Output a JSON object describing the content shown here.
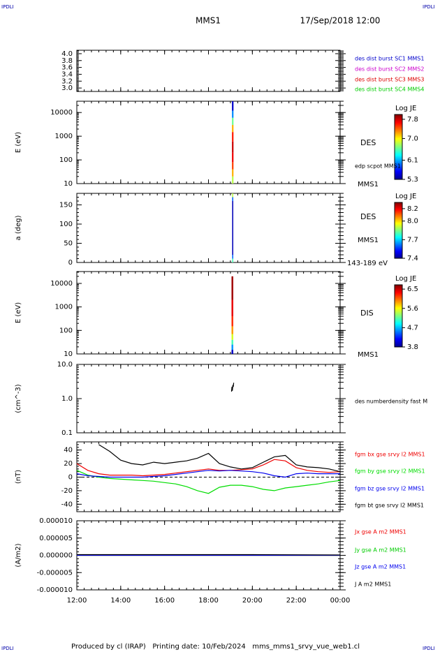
{
  "corner_label": "IPDLI",
  "header": {
    "title": "MMS1",
    "date": "17/Sep/2018 12:00"
  },
  "footer": "Produced by cl (IRAP)   Printing date: 10/Feb/2024   mms_mms1_srvy_vue_web1.cl",
  "chart_data": [
    {
      "type": "line",
      "ylim": [
        2.9,
        4.1
      ],
      "yticks": [
        {
          "value": 3.0,
          "label": "3.0"
        },
        3.2,
        3.4,
        3.6,
        3.8,
        {
          "value": 4.0,
          "label": "4.0"
        }
      ],
      "series": [
        {
          "name": "des dist burst SC1 MMS1",
          "color": "#0000cc"
        },
        {
          "name": "des dist burst SC2 MMS2",
          "color": "#cc00cc"
        },
        {
          "name": "des dist burst SC3 MMS3",
          "color": "#dd0000"
        },
        {
          "name": "des dist burst SC4 MMS4",
          "color": "#00cc00"
        }
      ]
    },
    {
      "type": "spectrogram",
      "ylabel": "E (eV)",
      "log": true,
      "ylim": [
        10,
        30000
      ],
      "yticks": [
        10,
        100,
        1000,
        10000
      ],
      "time": [
        19.07,
        19.14
      ],
      "yedges": [
        10,
        20,
        40,
        80,
        200,
        600,
        1500,
        3000,
        6000,
        12000,
        30000
      ],
      "z": [
        6.8,
        7.2,
        7.5,
        7.7,
        7.8,
        7.6,
        7.2,
        6.6,
        6.0,
        5.5
      ],
      "colorbar": {
        "label": "Log JE",
        "zlim": [
          5.3,
          8.0
        ],
        "ticks": [
          7.8,
          {
            "value": 7.0,
            "label": "7.0"
          },
          6.1,
          5.3
        ]
      },
      "labels": [
        "DES",
        "edp scpot MMS1",
        "MMS1"
      ]
    },
    {
      "type": "spectrogram",
      "ylabel": "a (deg)",
      "log": false,
      "ylim": [
        0,
        180
      ],
      "yticks": [
        0,
        50,
        100,
        150
      ],
      "time": [
        19.08,
        19.13
      ],
      "yedges": [
        0,
        10,
        20,
        160,
        170,
        180
      ],
      "z": [
        7.8,
        7.6,
        7.45,
        7.6,
        7.9
      ],
      "colorbar": {
        "label": "Log JE",
        "zlim": [
          7.4,
          8.3
        ],
        "ticks": [
          8.2,
          {
            "value": 8.0,
            "label": "8.0"
          },
          7.7,
          7.4
        ]
      },
      "labels": [
        "DES",
        "MMS1",
        "143-189 eV"
      ]
    },
    {
      "type": "spectrogram",
      "ylabel": "E (eV)",
      "log": true,
      "ylim": [
        10,
        32000
      ],
      "yticks": [
        10,
        100,
        1000,
        10000
      ],
      "time": [
        19.05,
        19.13
      ],
      "yedges": [
        10,
        15,
        25,
        40,
        70,
        150,
        400,
        2000,
        20000
      ],
      "z": [
        4.0,
        4.6,
        5.1,
        5.5,
        5.9,
        6.2,
        6.4,
        6.6
      ],
      "colorbar": {
        "label": "Log JE",
        "zlim": [
          3.8,
          6.7
        ],
        "ticks": [
          6.5,
          5.6,
          4.7,
          3.8
        ]
      },
      "labels": [
        "DIS",
        "MMS1"
      ]
    },
    {
      "type": "line",
      "ylabel": "(cm^-3)",
      "log": true,
      "ylim": [
        0.1,
        10
      ],
      "yticks": [
        {
          "value": 10,
          "label": "10.0"
        },
        {
          "value": 1,
          "label": "1.0"
        },
        0.1
      ],
      "x": [
        19.05,
        19.07,
        19.09,
        19.11,
        19.13,
        19.15
      ],
      "series": [
        {
          "name": "des numberdensity fast M",
          "color": "#000000",
          "values": [
            1.6,
            2.2,
            1.7,
            2.5,
            2.2,
            2.9
          ]
        }
      ]
    },
    {
      "type": "line",
      "ylabel": "(nT)",
      "zero_line": true,
      "ylim": [
        -51,
        52
      ],
      "yticks": [
        40,
        20,
        0,
        -20,
        -40
      ],
      "x": [
        12,
        12.5,
        13,
        13.5,
        14,
        14.5,
        15,
        15.5,
        16,
        16.5,
        17,
        17.5,
        18,
        18.5,
        19,
        19.5,
        20,
        20.5,
        21,
        21.5,
        22,
        22.5,
        23,
        23.5,
        24
      ],
      "series": [
        {
          "name": "fgm bx gse srvy l2 MMS1",
          "color": "#ee0000",
          "values": [
            20,
            10,
            5,
            3,
            3,
            3,
            2,
            3,
            4,
            6,
            8,
            10,
            12,
            10,
            10,
            11,
            12,
            18,
            26,
            24,
            14,
            10,
            8,
            7,
            8
          ]
        },
        {
          "name": "fgm by gse srvy l2 MMS1",
          "color": "#00dd00",
          "values": [
            10,
            3,
            0,
            -2,
            -3,
            -4,
            -5,
            -6,
            -8,
            -10,
            -14,
            -20,
            -24,
            -15,
            -12,
            -12,
            -14,
            -18,
            -20,
            -16,
            -14,
            -12,
            -10,
            -7,
            -5
          ]
        },
        {
          "name": "fgm bz gse srvy l2 MMS1",
          "color": "#0000ee",
          "values": [
            5,
            2,
            1,
            0,
            0,
            0,
            0,
            1,
            2,
            4,
            6,
            8,
            10,
            9,
            10,
            9,
            8,
            6,
            2,
            0,
            5,
            6,
            5,
            5,
            5
          ]
        },
        {
          "name": "fgm bt gse srvy l2 MMS1",
          "color": "#000000",
          "values": [
            null,
            null,
            48,
            38,
            25,
            20,
            18,
            22,
            20,
            22,
            24,
            28,
            35,
            20,
            15,
            12,
            14,
            22,
            30,
            32,
            18,
            15,
            14,
            12,
            8
          ]
        }
      ]
    },
    {
      "type": "line",
      "ylabel": "(A/m2)",
      "ylim": [
        -1e-05,
        1e-05
      ],
      "yticks": [
        {
          "value": 1e-05,
          "label": "0.000010"
        },
        {
          "value": 5e-06,
          "label": "0.000005"
        },
        {
          "value": 0,
          "label": "0.000000"
        },
        {
          "value": -5e-06,
          "label": "-0.000005"
        },
        {
          "value": -1e-05,
          "label": "-0.000010"
        }
      ],
      "x": [
        12,
        16,
        20,
        24
      ],
      "xlim": [
        12,
        24
      ],
      "xticks": [
        {
          "value": 12,
          "label": "12:00"
        },
        {
          "value": 14,
          "label": "14:00"
        },
        {
          "value": 16,
          "label": "16:00"
        },
        {
          "value": 18,
          "label": "18:00"
        },
        {
          "value": 20,
          "label": "20:00"
        },
        {
          "value": 22,
          "label": "22:00"
        },
        {
          "value": 24,
          "label": "00:00"
        }
      ],
      "series": [
        {
          "name": "Jx gse A m2 MMS1",
          "color": "#ee0000",
          "values": [
            0,
            0,
            0,
            0
          ]
        },
        {
          "name": "Jy gse A m2 MMS1",
          "color": "#00cc00",
          "values": [
            0,
            0,
            0,
            0
          ]
        },
        {
          "name": "Jz gse A m2 MMS1",
          "color": "#0000ee",
          "values": [
            0,
            0,
            0,
            0
          ]
        },
        {
          "name": "J A m2 MMS1",
          "color": "#000000",
          "values": [
            2e-07,
            2e-07,
            2e-07,
            1e-07
          ]
        }
      ]
    }
  ]
}
